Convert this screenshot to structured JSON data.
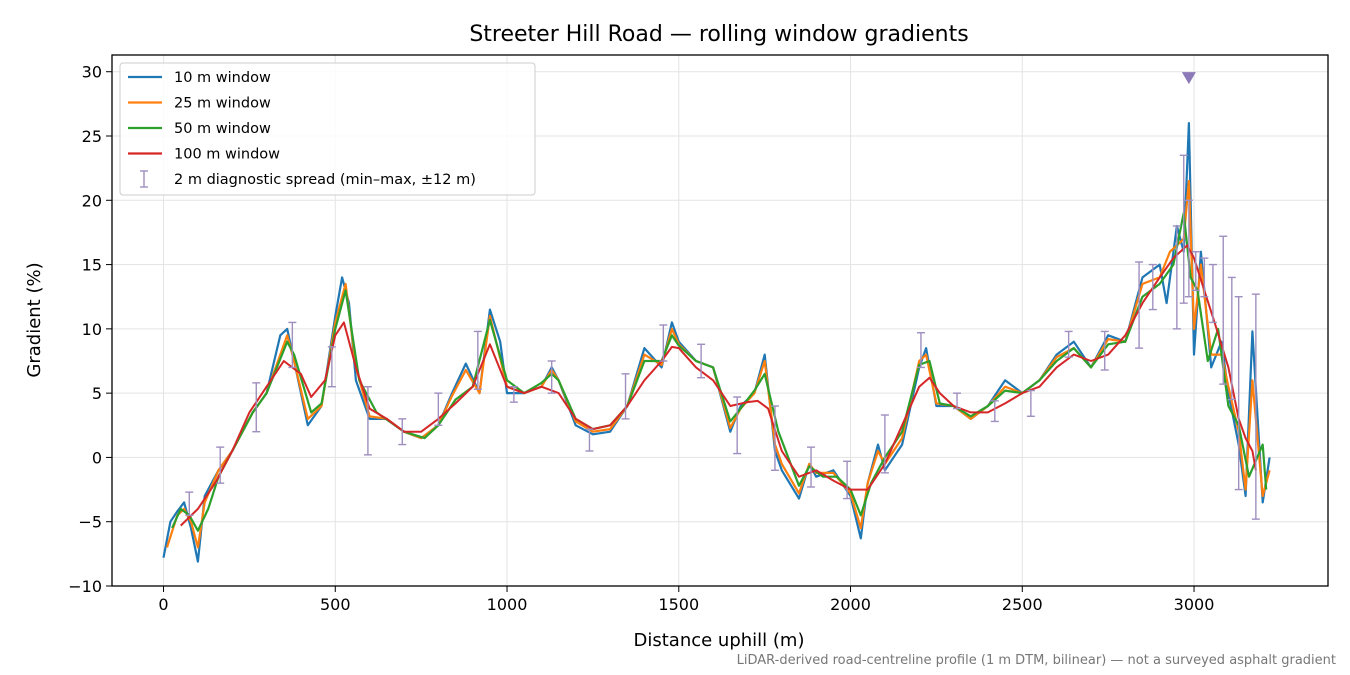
{
  "chart_data": {
    "type": "line",
    "title": "Streeter Hill Road — rolling window gradients",
    "xlabel": "Distance uphill (m)",
    "ylabel": "Gradient (%)",
    "xlim": [
      -150,
      3390
    ],
    "ylim": [
      -10,
      31.3
    ],
    "x_ticks": [
      0,
      500,
      1000,
      1500,
      2000,
      2500,
      3000
    ],
    "y_ticks": [
      -10,
      -5,
      0,
      5,
      10,
      15,
      20,
      25,
      30
    ],
    "grid": true,
    "legend_position": "top-left",
    "series": [
      {
        "name": "10 m window",
        "color": "#1f77b4",
        "x": [
          0,
          20,
          40,
          60,
          80,
          100,
          120,
          160,
          200,
          260,
          300,
          340,
          360,
          380,
          420,
          460,
          500,
          520,
          540,
          560,
          600,
          650,
          700,
          750,
          800,
          840,
          880,
          920,
          950,
          980,
          1000,
          1050,
          1100,
          1130,
          1150,
          1200,
          1250,
          1300,
          1350,
          1400,
          1450,
          1480,
          1500,
          1550,
          1600,
          1650,
          1680,
          1720,
          1750,
          1780,
          1800,
          1850,
          1880,
          1900,
          1950,
          2000,
          2030,
          2050,
          2080,
          2100,
          2150,
          2200,
          2220,
          2250,
          2300,
          2350,
          2400,
          2450,
          2500,
          2550,
          2600,
          2650,
          2700,
          2750,
          2800,
          2850,
          2900,
          2920,
          2950,
          2970,
          2985,
          3000,
          3020,
          3050,
          3080,
          3100,
          3130,
          3150,
          3170,
          3200,
          3220
        ],
        "y": [
          -7.8,
          -5.0,
          -4.2,
          -3.5,
          -5.5,
          -8.1,
          -3.0,
          -1.0,
          0.5,
          3.5,
          5.0,
          9.5,
          10.0,
          7.5,
          2.5,
          4.0,
          11.0,
          14.0,
          12.0,
          6.0,
          3.0,
          3.0,
          2.0,
          1.5,
          2.5,
          5.0,
          7.3,
          5.0,
          11.5,
          9.0,
          5.0,
          5.0,
          5.5,
          7.0,
          6.0,
          2.5,
          1.8,
          2.0,
          4.0,
          8.5,
          7.0,
          10.5,
          9.0,
          7.5,
          7.0,
          2.0,
          4.0,
          5.0,
          8.0,
          0.5,
          -1.0,
          -3.2,
          -0.5,
          -1.5,
          -1.0,
          -3.0,
          -6.3,
          -2.0,
          1.0,
          -1.0,
          1.0,
          7.0,
          8.5,
          4.0,
          4.0,
          3.0,
          4.0,
          6.0,
          5.0,
          6.0,
          8.0,
          9.0,
          7.0,
          9.5,
          9.0,
          14.0,
          15.0,
          12.0,
          18.0,
          16.0,
          26.0,
          8.0,
          16.0,
          7.0,
          9.0,
          5.0,
          1.0,
          -3.0,
          9.8,
          -3.5,
          0.0
        ]
      },
      {
        "name": "25 m window",
        "color": "#ff7f0e",
        "x": [
          10,
          40,
          60,
          80,
          100,
          120,
          160,
          200,
          260,
          300,
          360,
          380,
          420,
          460,
          500,
          530,
          560,
          600,
          650,
          700,
          750,
          800,
          840,
          880,
          920,
          950,
          1000,
          1050,
          1100,
          1130,
          1150,
          1200,
          1250,
          1300,
          1350,
          1400,
          1450,
          1480,
          1500,
          1550,
          1600,
          1650,
          1680,
          1720,
          1750,
          1780,
          1800,
          1850,
          1880,
          1900,
          1950,
          2000,
          2030,
          2050,
          2080,
          2100,
          2150,
          2200,
          2220,
          2250,
          2300,
          2350,
          2400,
          2450,
          2500,
          2550,
          2600,
          2650,
          2700,
          2750,
          2800,
          2850,
          2900,
          2930,
          2950,
          2970,
          2985,
          3000,
          3020,
          3050,
          3080,
          3100,
          3130,
          3150,
          3170,
          3200,
          3220
        ],
        "y": [
          -7.0,
          -4.5,
          -4.0,
          -5.0,
          -7.0,
          -3.5,
          -1.0,
          0.5,
          3.5,
          5.0,
          9.5,
          7.5,
          3.0,
          4.0,
          10.5,
          13.5,
          7.0,
          3.2,
          3.0,
          2.0,
          1.5,
          2.5,
          4.8,
          6.8,
          5.0,
          11.0,
          5.5,
          5.0,
          5.5,
          6.8,
          6.0,
          2.8,
          2.0,
          2.2,
          4.0,
          8.0,
          7.2,
          10.0,
          8.8,
          7.5,
          7.0,
          2.3,
          3.8,
          5.0,
          7.5,
          1.0,
          -0.5,
          -2.8,
          -0.5,
          -1.2,
          -1.2,
          -2.8,
          -5.5,
          -2.0,
          0.5,
          -0.5,
          1.5,
          7.5,
          8.0,
          4.2,
          4.0,
          3.0,
          4.0,
          5.5,
          5.0,
          6.0,
          7.8,
          8.5,
          7.0,
          9.2,
          9.0,
          13.5,
          14.0,
          16.0,
          16.5,
          17.0,
          21.5,
          10.0,
          15.0,
          8.0,
          8.0,
          5.5,
          2.0,
          -2.5,
          6.0,
          -3.0,
          -1.0
        ]
      },
      {
        "name": "50 m window",
        "color": "#2ca02c",
        "x": [
          25,
          50,
          75,
          100,
          130,
          160,
          200,
          260,
          300,
          360,
          380,
          430,
          460,
          500,
          530,
          570,
          620,
          700,
          760,
          800,
          850,
          900,
          950,
          1000,
          1050,
          1100,
          1130,
          1150,
          1200,
          1250,
          1300,
          1350,
          1400,
          1450,
          1480,
          1500,
          1550,
          1600,
          1650,
          1680,
          1720,
          1750,
          1790,
          1850,
          1880,
          1920,
          1960,
          2000,
          2030,
          2060,
          2100,
          2150,
          2200,
          2230,
          2260,
          2300,
          2350,
          2400,
          2450,
          2500,
          2550,
          2600,
          2650,
          2700,
          2750,
          2800,
          2850,
          2900,
          2940,
          2970,
          2990,
          3010,
          3040,
          3070,
          3100,
          3130,
          3160,
          3200,
          3210
        ],
        "y": [
          -5.5,
          -4.0,
          -4.5,
          -5.7,
          -4.0,
          -1.5,
          0.5,
          3.5,
          5.0,
          9.0,
          8.0,
          3.5,
          4.2,
          10.0,
          13.0,
          6.0,
          3.5,
          2.0,
          1.5,
          2.5,
          4.5,
          5.5,
          10.7,
          6.0,
          5.0,
          5.8,
          6.5,
          6.0,
          3.0,
          2.2,
          2.5,
          4.0,
          7.5,
          7.5,
          9.5,
          8.7,
          7.5,
          7.0,
          2.8,
          3.8,
          5.2,
          6.5,
          2.0,
          -2.2,
          -0.7,
          -1.5,
          -1.5,
          -2.5,
          -4.5,
          -2.0,
          0.0,
          2.0,
          7.2,
          7.5,
          4.2,
          4.0,
          3.2,
          4.0,
          5.2,
          5.0,
          6.0,
          7.5,
          8.5,
          7.0,
          8.8,
          9.0,
          12.5,
          13.5,
          15.0,
          19.0,
          14.0,
          13.0,
          7.5,
          10.0,
          4.0,
          2.5,
          -1.5,
          1.0,
          -2.5
        ]
      },
      {
        "name": "100 m window",
        "color": "#d62728",
        "x": [
          50,
          100,
          150,
          200,
          250,
          300,
          350,
          400,
          430,
          470,
          500,
          525,
          560,
          600,
          650,
          700,
          750,
          800,
          850,
          900,
          950,
          1000,
          1050,
          1100,
          1150,
          1200,
          1250,
          1300,
          1350,
          1400,
          1450,
          1480,
          1500,
          1550,
          1600,
          1650,
          1700,
          1730,
          1760,
          1800,
          1850,
          1900,
          1950,
          2000,
          2050,
          2100,
          2150,
          2200,
          2230,
          2260,
          2300,
          2350,
          2400,
          2450,
          2500,
          2550,
          2600,
          2650,
          2700,
          2750,
          2800,
          2850,
          2900,
          2940,
          2980,
          3000,
          3030,
          3060,
          3100,
          3130,
          3150,
          3170,
          3180
        ],
        "y": [
          -5.3,
          -4.0,
          -2.0,
          0.5,
          3.5,
          5.5,
          7.5,
          6.5,
          4.7,
          6.0,
          9.5,
          10.5,
          7.0,
          3.8,
          3.0,
          2.0,
          2.0,
          3.0,
          4.2,
          5.5,
          8.8,
          5.5,
          5.0,
          5.5,
          5.0,
          3.0,
          2.2,
          2.5,
          4.0,
          6.0,
          7.5,
          8.6,
          8.5,
          7.0,
          6.0,
          4.0,
          4.3,
          4.4,
          3.8,
          0.5,
          -1.5,
          -1.0,
          -1.8,
          -2.5,
          -2.5,
          -0.5,
          2.5,
          5.5,
          6.2,
          5.0,
          4.0,
          3.5,
          3.5,
          4.2,
          5.0,
          5.5,
          7.0,
          8.0,
          7.5,
          8.0,
          9.5,
          12.0,
          14.0,
          15.5,
          16.5,
          15.5,
          13.0,
          10.5,
          7.0,
          3.0,
          1.5,
          0.5,
          -1.0
        ]
      },
      {
        "name": "2 m diagnostic spread (min–max, ±12 m)",
        "color": "#9f8fbf",
        "type": "errorbar",
        "x": [
          75,
          165,
          270,
          375,
          490,
          595,
          695,
          800,
          915,
          1020,
          1130,
          1240,
          1345,
          1455,
          1565,
          1670,
          1780,
          1885,
          1990,
          2100,
          2205,
          2310,
          2420,
          2525,
          2635,
          2740,
          2840,
          2880,
          2950,
          2970,
          2985,
          3005,
          3030,
          3055,
          3085,
          3110,
          3130,
          3180
        ],
        "ymin": [
          -4.5,
          -2.0,
          2.0,
          7.0,
          5.5,
          0.2,
          1.0,
          2.5,
          5.3,
          4.3,
          5.0,
          0.5,
          3.0,
          7.5,
          6.2,
          0.3,
          -1.0,
          -2.3,
          -3.2,
          -1.2,
          7.0,
          3.8,
          2.8,
          3.2,
          7.8,
          6.8,
          8.5,
          11.5,
          10.0,
          12.0,
          12.5,
          13.0,
          12.5,
          10.5,
          5.7,
          4.5,
          -2.5,
          -4.8
        ],
        "ymax": [
          -2.7,
          0.8,
          5.8,
          10.5,
          8.6,
          5.5,
          3.0,
          5.0,
          9.8,
          5.5,
          7.5,
          2.2,
          6.5,
          10.3,
          8.8,
          4.7,
          4.0,
          0.8,
          -0.3,
          3.3,
          9.7,
          5.0,
          4.4,
          5.2,
          9.8,
          9.8,
          15.2,
          15.0,
          18.0,
          23.5,
          20.0,
          16.0,
          15.5,
          15.0,
          17.2,
          14.0,
          12.5,
          12.7
        ]
      }
    ],
    "annotations": [
      {
        "type": "marker",
        "symbol": "triangle-down",
        "x": 2985,
        "y": 29.5,
        "color": "#8c7ab8"
      }
    ],
    "footnote": "LiDAR-derived road-centreline profile (1 m DTM, bilinear) — not a surveyed asphalt gradient"
  }
}
